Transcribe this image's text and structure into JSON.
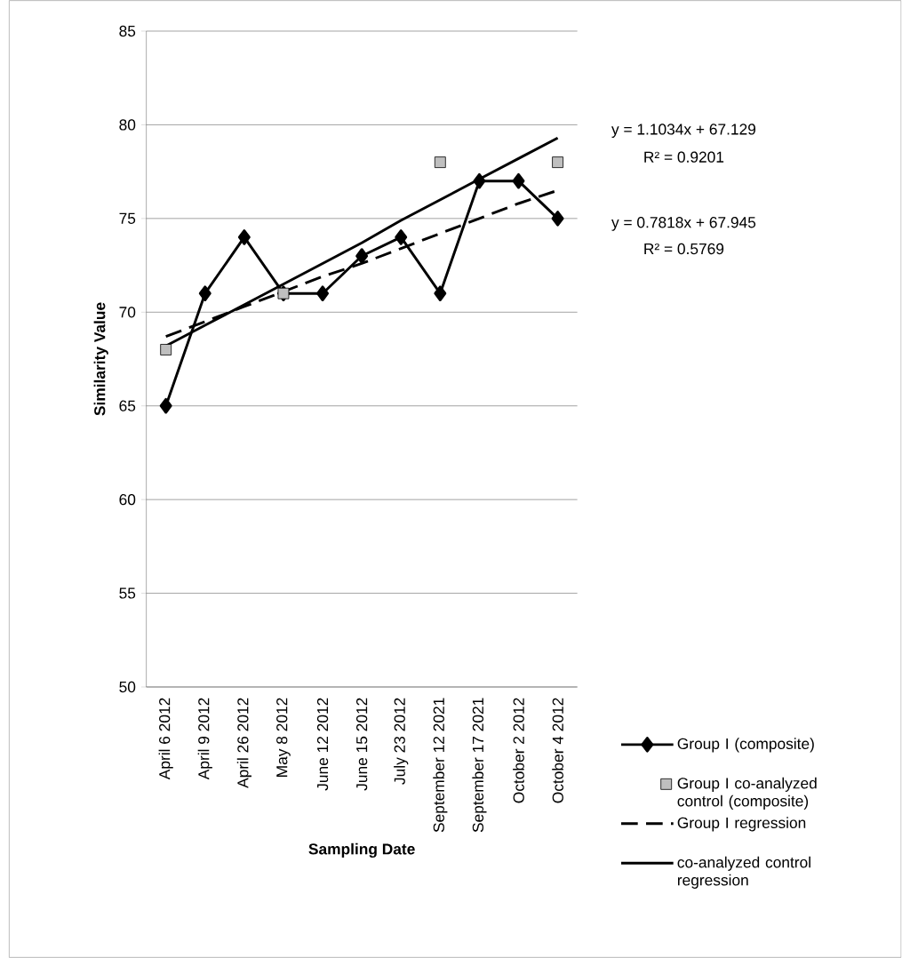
{
  "chart_data": {
    "type": "line",
    "xlabel": "Sampling Date",
    "ylabel": "Similarity Value",
    "categories": [
      "April 6 2012",
      "April 9 2012",
      "April 26 2012",
      "May 8 2012",
      "June 12 2012",
      "June 15 2012",
      "July 23 2012",
      "September 12 2021",
      "September 17 2021",
      "October 2 2012",
      "October 4 2012"
    ],
    "series": [
      {
        "name": "Group I (composite)",
        "type": "line",
        "color": "#000000",
        "marker": "diamond",
        "line_style": "solid",
        "values": [
          65,
          71,
          74,
          71,
          71,
          73,
          74,
          71,
          77,
          77,
          75
        ]
      },
      {
        "name": "Group I co-analyzed control (composite)",
        "type": "scatter",
        "color": "#bfbfbf",
        "marker": "square",
        "values": [
          68,
          null,
          null,
          71,
          null,
          null,
          null,
          78,
          null,
          null,
          78
        ]
      },
      {
        "name": "Group I regression",
        "type": "line",
        "color": "#000000",
        "marker": "none",
        "line_style": "dashed",
        "values": [
          68.7,
          69.5,
          70.3,
          71.1,
          71.9,
          72.6,
          73.4,
          74.2,
          75.0,
          75.8,
          76.5
        ]
      },
      {
        "name": "co-analyzed control regression",
        "type": "line",
        "color": "#000000",
        "marker": "none",
        "line_style": "solid",
        "values": [
          68.2,
          69.3,
          70.4,
          71.5,
          72.6,
          73.7,
          74.9,
          76.0,
          77.1,
          78.2,
          79.3
        ]
      }
    ],
    "ylim": [
      50,
      85
    ],
    "yticks": [
      50,
      55,
      60,
      65,
      70,
      75,
      80,
      85
    ],
    "grid": "y",
    "legend": "bottom right",
    "annotations": [
      "y = 1.1034x + 67.129",
      "R² = 0.9201",
      "y = 0.7818x + 67.945",
      "R² = 0.5769"
    ]
  }
}
